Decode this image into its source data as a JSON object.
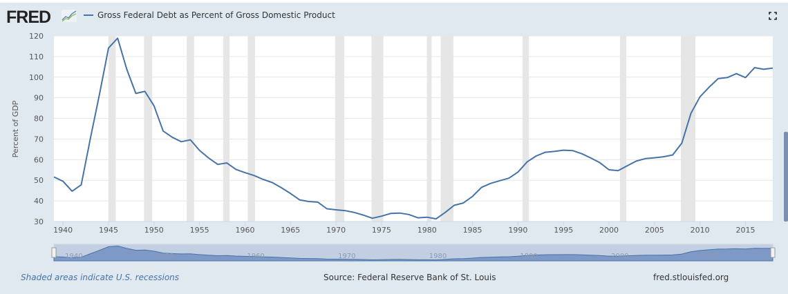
{
  "header": {
    "logo": "FRED",
    "legend_label": "Gross Federal Debt as Percent of Gross Domestic Product",
    "fullscreen_icon": "fullscreen-icon"
  },
  "footer": {
    "recession_note": "Shaded areas indicate U.S. recessions",
    "source": "Source: Federal Reserve Bank of St. Louis",
    "site": "fred.stlouisfed.org"
  },
  "colors": {
    "series": "#4572a7",
    "recession": "#e6e6e6",
    "background": "#e1e9f0"
  },
  "chart_data": {
    "type": "line",
    "title": "",
    "xlabel": "",
    "ylabel": "Percent of GDP",
    "xlim": [
      1939,
      2018
    ],
    "ylim": [
      30,
      120
    ],
    "grid": true,
    "legend": "top-left",
    "yticks": [
      "30",
      "40",
      "50",
      "60",
      "70",
      "80",
      "90",
      "100",
      "110",
      "120"
    ],
    "xticks": [
      "1940",
      "1945",
      "1950",
      "1955",
      "1960",
      "1965",
      "1970",
      "1975",
      "1980",
      "1985",
      "1990",
      "1995",
      "2000",
      "2005",
      "2010",
      "2015"
    ],
    "navigator_ticks": [
      "1940",
      "1950",
      "1960",
      "1970",
      "1980",
      "1990",
      "2000",
      "2010"
    ],
    "series": [
      {
        "name": "Gross Federal Debt as Percent of Gross Domestic Product",
        "x": [
          1939,
          1940,
          1941,
          1942,
          1943,
          1944,
          1945,
          1946,
          1947,
          1948,
          1949,
          1950,
          1951,
          1952,
          1953,
          1954,
          1955,
          1956,
          1957,
          1958,
          1959,
          1960,
          1961,
          1962,
          1963,
          1964,
          1965,
          1966,
          1967,
          1968,
          1969,
          1970,
          1971,
          1972,
          1973,
          1974,
          1975,
          1976,
          1977,
          1978,
          1979,
          1980,
          1981,
          1982,
          1983,
          1984,
          1985,
          1986,
          1987,
          1988,
          1989,
          1990,
          1991,
          1992,
          1993,
          1994,
          1995,
          1996,
          1997,
          1998,
          1999,
          2000,
          2001,
          2002,
          2003,
          2004,
          2005,
          2006,
          2007,
          2008,
          2009,
          2010,
          2011,
          2012,
          2013,
          2014,
          2015,
          2016,
          2017,
          2018
        ],
        "y": [
          51.6,
          49.5,
          44.7,
          47.8,
          70.2,
          91.5,
          114.1,
          118.9,
          103.9,
          92.1,
          93.1,
          86.1,
          73.9,
          70.9,
          68.7,
          69.6,
          64.5,
          60.8,
          57.7,
          58.4,
          55.3,
          53.7,
          52.3,
          50.4,
          48.9,
          46.4,
          43.6,
          40.5,
          39.7,
          39.4,
          36.2,
          35.7,
          35.3,
          34.4,
          33.1,
          31.6,
          32.6,
          33.9,
          34.1,
          33.4,
          31.8,
          32.1,
          31.3,
          34.4,
          37.9,
          39.0,
          42.2,
          46.6,
          48.5,
          49.8,
          51.0,
          54.0,
          58.9,
          61.8,
          63.6,
          64.0,
          64.6,
          64.4,
          62.9,
          60.8,
          58.5,
          55.1,
          54.7,
          57.0,
          59.3,
          60.5,
          60.9,
          61.4,
          62.3,
          68.0,
          82.4,
          90.5,
          95.1,
          99.3,
          99.8,
          101.7,
          99.8,
          104.6,
          103.8,
          104.4
        ]
      }
    ],
    "recessions": [
      [
        1945.0,
        1945.8
      ],
      [
        1948.9,
        1949.8
      ],
      [
        1953.6,
        1954.4
      ],
      [
        1957.6,
        1958.3
      ],
      [
        1960.3,
        1961.1
      ],
      [
        1969.9,
        1970.9
      ],
      [
        1973.9,
        1975.2
      ],
      [
        1980.0,
        1980.5
      ],
      [
        1981.5,
        1982.9
      ],
      [
        1990.5,
        1991.2
      ],
      [
        2001.2,
        2001.9
      ],
      [
        2007.9,
        2009.5
      ]
    ]
  }
}
